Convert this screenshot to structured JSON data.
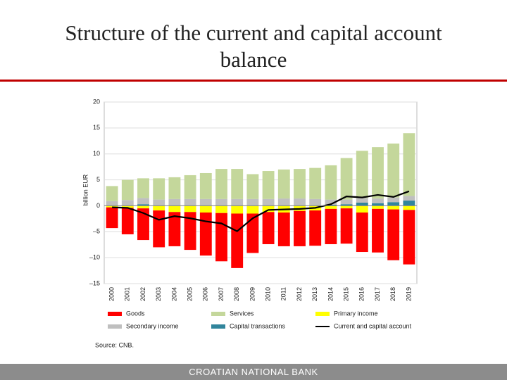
{
  "title": "Structure of the current and capital account balance",
  "source": "Source: CNB.",
  "footer": "CROATIAN NATIONAL BANK",
  "chart_data": {
    "type": "bar",
    "stacked": true,
    "grid": true,
    "y_label": "billion EUR",
    "categories": [
      "2000",
      "2001",
      "2002",
      "2003",
      "2004",
      "2005",
      "2006",
      "2007",
      "2008",
      "2009",
      "2010",
      "2011",
      "2012",
      "2013",
      "2014",
      "2015",
      "2016",
      "2017",
      "2018",
      "2019"
    ],
    "ylim": [
      -15,
      20
    ],
    "yticks": [
      20,
      15,
      10,
      5,
      0,
      {
        "value": -5,
        "label": "–5"
      },
      {
        "value": -10,
        "label": "–10"
      },
      {
        "value": -15,
        "label": "–15"
      }
    ],
    "series": [
      {
        "name": "Goods",
        "color": "#ff0000",
        "values": [
          -4.0,
          -5.1,
          -6.1,
          -7.1,
          -6.6,
          -7.3,
          -8.3,
          -9.3,
          -10.5,
          -7.6,
          -6.2,
          -6.5,
          -6.8,
          -6.8,
          -6.8,
          -6.8,
          -7.6,
          -8.4,
          -9.8,
          -10.5
        ]
      },
      {
        "name": "Services",
        "color": "#c4d79b",
        "values": [
          2.9,
          3.9,
          3.8,
          4.1,
          4.2,
          4.6,
          5.0,
          5.8,
          5.8,
          4.8,
          5.4,
          5.6,
          5.7,
          6.0,
          6.6,
          8.0,
          9.1,
          9.9,
          10.4,
          12.1
        ]
      },
      {
        "name": "Primary income",
        "color": "#ffff00",
        "values": [
          -0.3,
          -0.4,
          -0.5,
          -0.9,
          -1.2,
          -1.2,
          -1.3,
          -1.4,
          -1.5,
          -1.5,
          -1.2,
          -1.3,
          -1.0,
          -0.9,
          -0.6,
          -0.5,
          -1.3,
          -0.6,
          -0.7,
          -0.8
        ]
      },
      {
        "name": "Secondary income",
        "color": "#bfbfbf",
        "values": [
          0.8,
          1.0,
          1.2,
          1.1,
          1.2,
          1.2,
          1.2,
          1.2,
          1.2,
          1.2,
          1.2,
          1.3,
          1.3,
          1.2,
          1.0,
          0.9,
          0.9,
          0.9,
          0.9,
          0.9
        ]
      },
      {
        "name": "Capital transactions",
        "color": "#31859c",
        "values": [
          0.1,
          0.1,
          0.3,
          0.1,
          0.1,
          0.1,
          0.1,
          0.1,
          0.1,
          0.1,
          0.1,
          0.1,
          0.1,
          0.1,
          0.2,
          0.3,
          0.6,
          0.5,
          0.7,
          1.0
        ]
      },
      {
        "name": "Current and capital account",
        "type": "line",
        "color": "#000000",
        "values": [
          -0.3,
          -0.4,
          -1.4,
          -2.7,
          -2.0,
          -2.4,
          -3.0,
          -3.4,
          -4.9,
          -2.4,
          -0.8,
          -0.7,
          -0.6,
          -0.4,
          0.3,
          1.8,
          1.6,
          2.1,
          1.7,
          2.8
        ]
      }
    ]
  }
}
